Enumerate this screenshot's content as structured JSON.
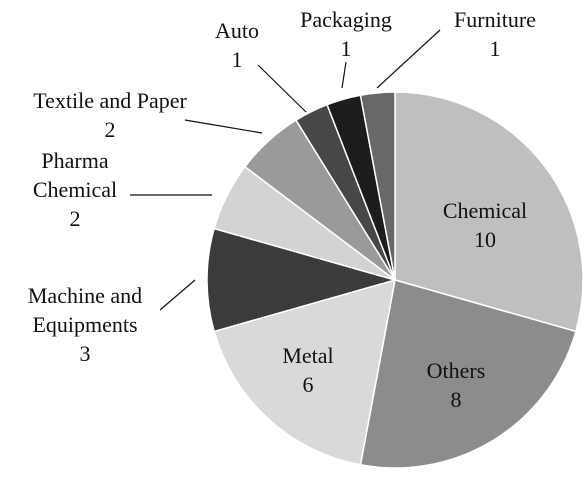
{
  "chart_data": {
    "type": "pie",
    "categories": [
      "Chemical",
      "Others",
      "Metal",
      "Machine and Equipments",
      "Pharma Chemical",
      "Textile and Paper",
      "Auto",
      "Packaging",
      "Furniture"
    ],
    "values": [
      10,
      8,
      6,
      3,
      2,
      2,
      1,
      1,
      1
    ],
    "colors": [
      "#bfbfbf",
      "#8c8c8c",
      "#d9d9d9",
      "#3b3b3b",
      "#d3d3d3",
      "#9a9a9a",
      "#474747",
      "#1c1c1c",
      "#686868"
    ]
  }
}
